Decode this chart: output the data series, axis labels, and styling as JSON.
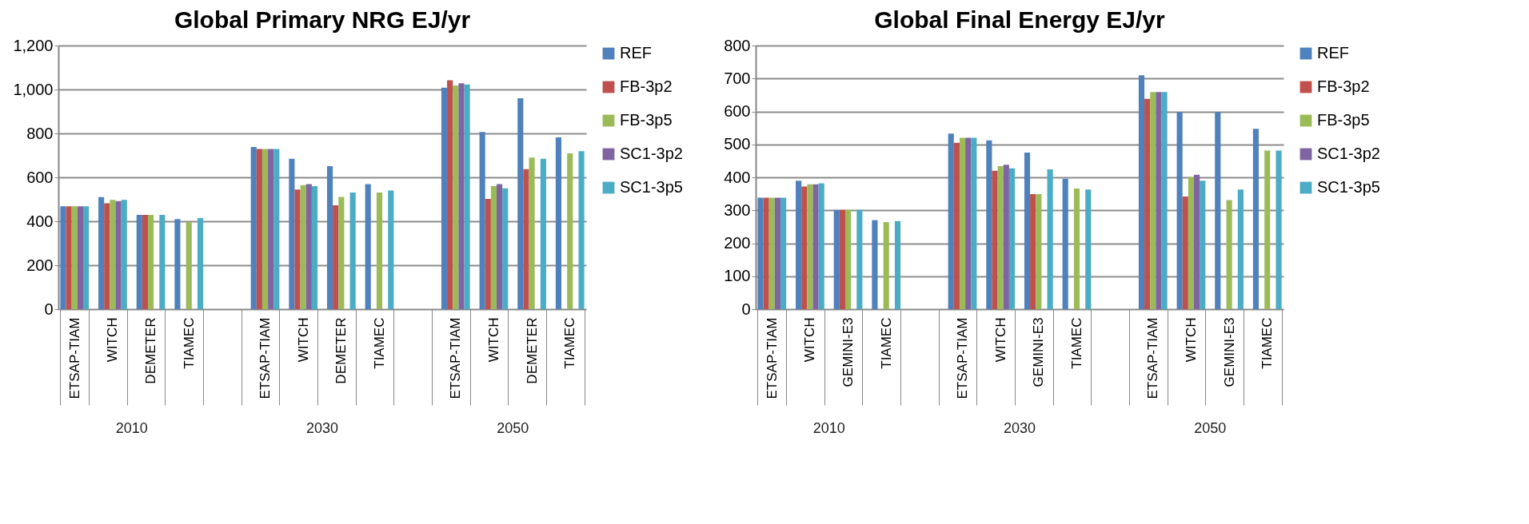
{
  "chart_data": [
    {
      "type": "bar",
      "title": "Global Primary NRG EJ/yr",
      "categories": [
        "ETSAP-TIAM",
        "WITCH",
        "DEMETER",
        "TIAMEC",
        null,
        "ETSAP-TIAM",
        "WITCH",
        "DEMETER",
        "TIAMEC",
        null,
        "ETSAP-TIAM",
        "WITCH",
        "DEMETER",
        "TIAMEC"
      ],
      "annotations": [
        "2010",
        "2030",
        "2050"
      ],
      "series": [
        {
          "name": "REF",
          "color": "#4f81bd",
          "values": [
            468,
            510,
            429,
            410,
            null,
            738,
            685,
            651,
            569,
            null,
            1008,
            806,
            960,
            782
          ]
        },
        {
          "name": "FB-3p2",
          "color": "#c0504d",
          "values": [
            468,
            482,
            429,
            null,
            null,
            729,
            545,
            473,
            null,
            null,
            1042,
            502,
            637,
            null
          ]
        },
        {
          "name": "FB-3p5",
          "color": "#9bbb59",
          "values": [
            468,
            497,
            429,
            396,
            null,
            729,
            565,
            511,
            531,
            null,
            1018,
            560,
            690,
            709
          ]
        },
        {
          "name": "SC1-3p2",
          "color": "#8064a2",
          "values": [
            468,
            492,
            null,
            null,
            null,
            729,
            569,
            null,
            null,
            null,
            1028,
            569,
            null,
            null
          ]
        },
        {
          "name": "SC1-3p5",
          "color": "#4bacc6",
          "values": [
            468,
            497,
            429,
            415,
            null,
            729,
            560,
            531,
            540,
            null,
            1023,
            550,
            685,
            719
          ]
        }
      ],
      "ylim": [
        0,
        1200
      ],
      "yticks": [
        {
          "value": 0,
          "label": "0"
        },
        {
          "value": 200,
          "label": "200"
        },
        {
          "value": 400,
          "label": "400"
        },
        {
          "value": 600,
          "label": "600"
        },
        {
          "value": 800,
          "label": "800"
        },
        {
          "value": 1000,
          "label": "1,000"
        },
        {
          "value": 1200,
          "label": "1,200"
        }
      ],
      "grid": "y",
      "legend": "right"
    },
    {
      "type": "bar",
      "title": "Global Final Energy EJ/yr",
      "categories": [
        "ETSAP-TIAM",
        "WITCH",
        "GEMINI-E3",
        "TIAMEC",
        null,
        "ETSAP-TIAM",
        "WITCH",
        "GEMINI-E3",
        "TIAMEC",
        null,
        "ETSAP-TIAM",
        "WITCH",
        "GEMINI-E3",
        "TIAMEC"
      ],
      "annotations": [
        "2010",
        "2030",
        "2050"
      ],
      "series": [
        {
          "name": "REF",
          "color": "#4f81bd",
          "values": [
            338,
            390,
            301,
            270,
            null,
            533,
            512,
            475,
            396,
            null,
            710,
            598,
            598,
            547
          ]
        },
        {
          "name": "FB-3p2",
          "color": "#c0504d",
          "values": [
            338,
            372,
            301,
            null,
            null,
            505,
            420,
            349,
            null,
            null,
            638,
            342,
            null,
            null
          ]
        },
        {
          "name": "FB-3p5",
          "color": "#9bbb59",
          "values": [
            338,
            379,
            301,
            264,
            null,
            520,
            434,
            349,
            366,
            null,
            659,
            401,
            331,
            481
          ]
        },
        {
          "name": "SC1-3p2",
          "color": "#8064a2",
          "values": [
            338,
            379,
            null,
            null,
            null,
            520,
            438,
            null,
            null,
            null,
            659,
            408,
            null,
            null
          ]
        },
        {
          "name": "SC1-3p5",
          "color": "#4bacc6",
          "values": [
            338,
            382,
            301,
            267,
            null,
            520,
            427,
            424,
            363,
            null,
            659,
            390,
            363,
            481
          ]
        }
      ],
      "ylim": [
        0,
        800
      ],
      "yticks": [
        0,
        100,
        200,
        300,
        400,
        500,
        600,
        700,
        800
      ],
      "grid": "y",
      "legend": "right"
    }
  ]
}
